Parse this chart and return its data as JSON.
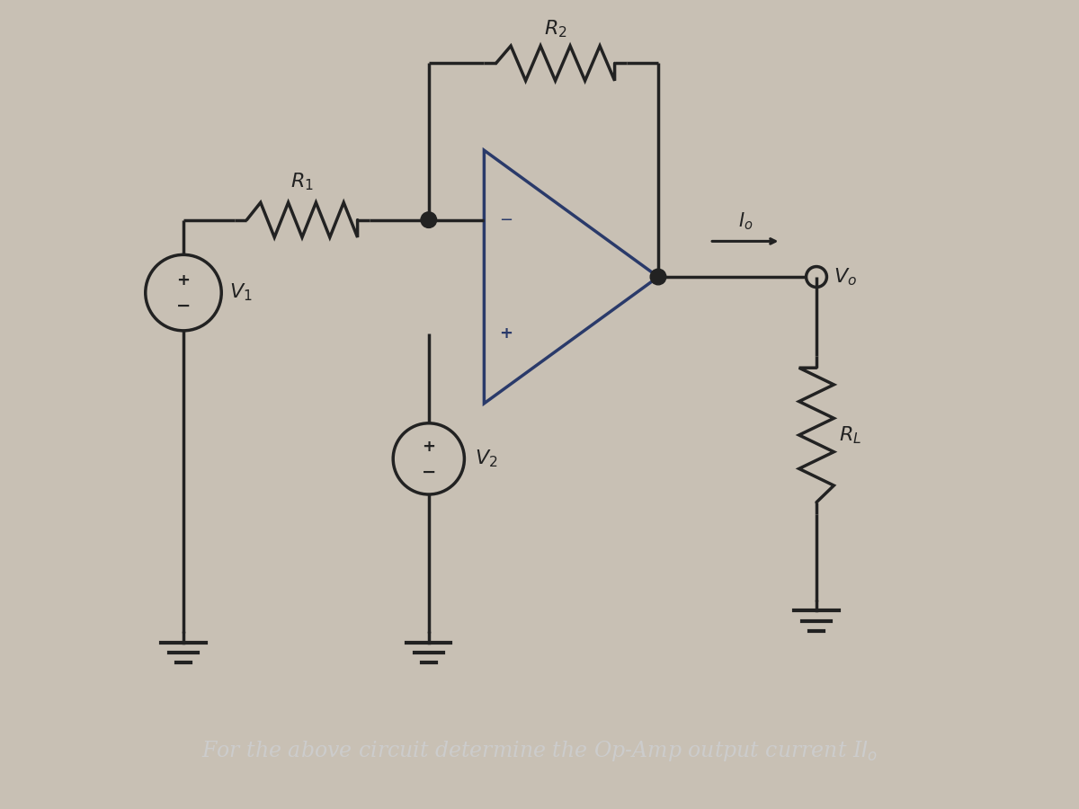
{
  "bg_color": "#c8c0b4",
  "bottom_bg": "#2a2a2a",
  "line_color": "#1a1a1a",
  "line_width": 2.5,
  "title_text": "For the above circuit determine the Op-Amp output current I",
  "title_text2": "o",
  "title_fontsize": 17,
  "title_color": "#cccccc",
  "fig_width": 12,
  "fig_height": 9,
  "opamp_line_color": "#2a3a6a",
  "circuit_line_color": "#222222"
}
